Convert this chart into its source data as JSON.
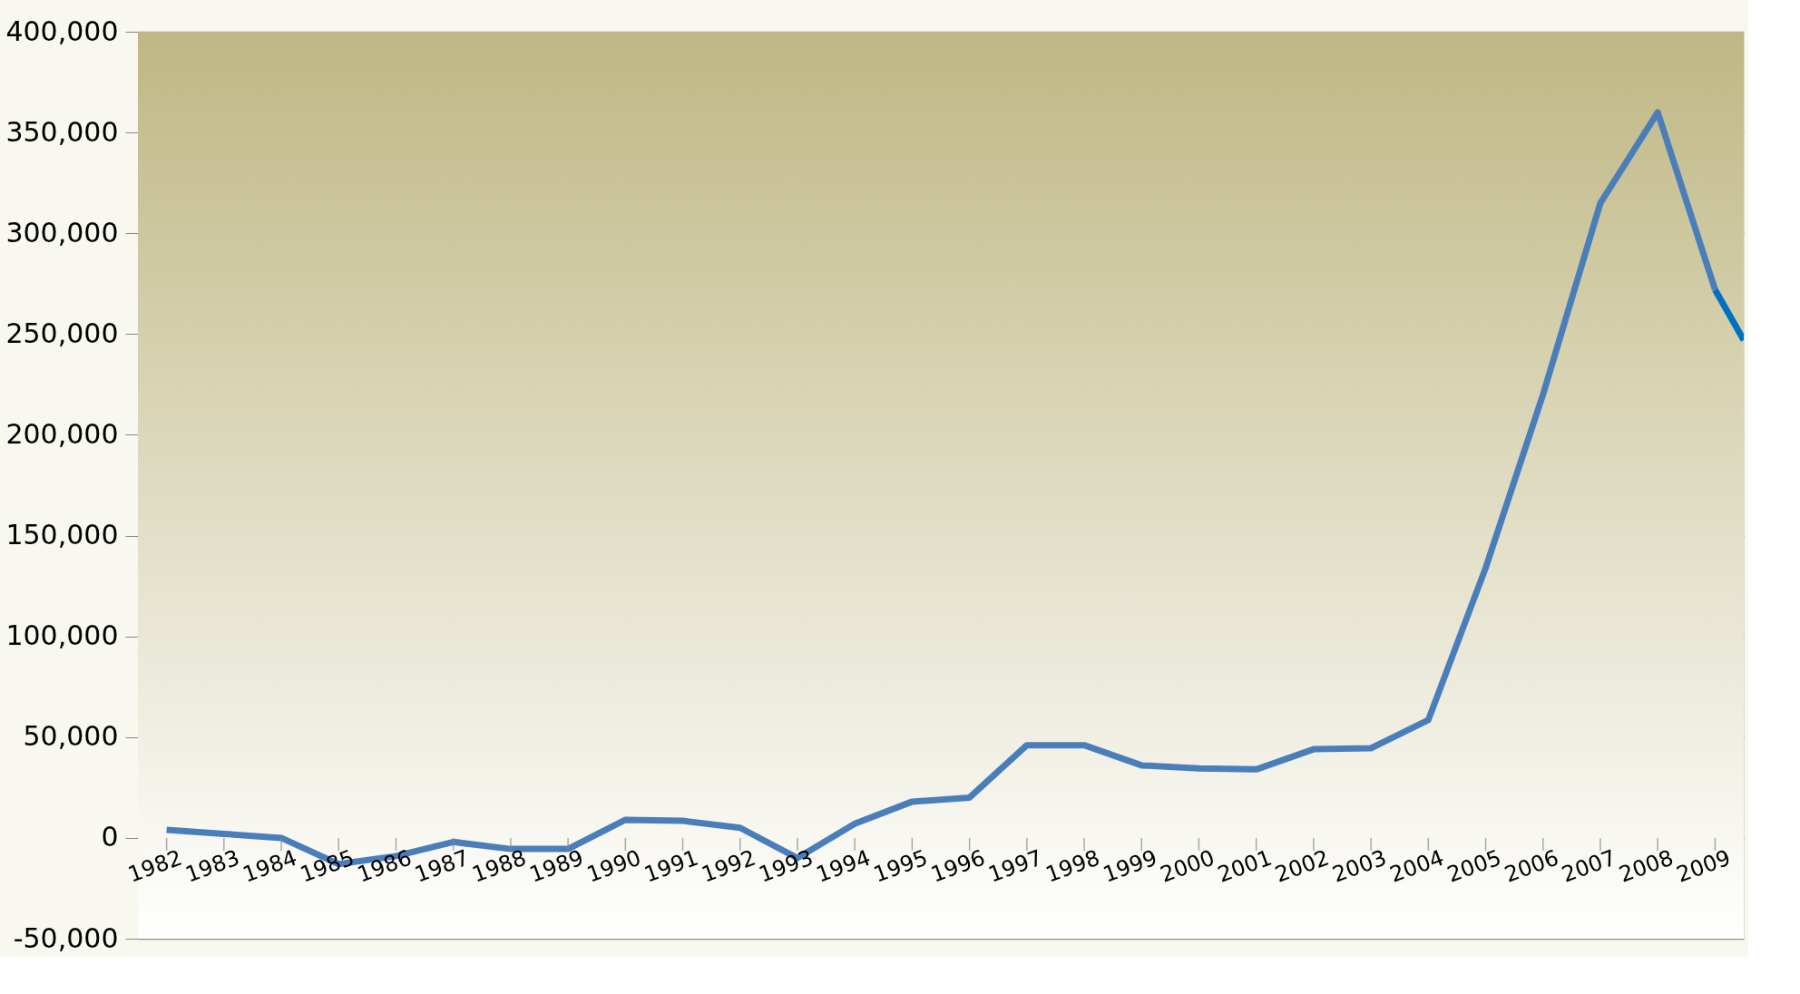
{
  "chart_data": {
    "type": "line",
    "x": [
      1982,
      1983,
      1984,
      1985,
      1986,
      1987,
      1988,
      1989,
      1990,
      1991,
      1992,
      1993,
      1994,
      1995,
      1996,
      1997,
      1998,
      1999,
      2000,
      2001,
      2002,
      2003,
      2004,
      2005,
      2006,
      2007,
      2008,
      2009
    ],
    "series": [
      {
        "color": "#4a7ebb",
        "values": [
          4000,
          2000,
          0,
          -13000,
          -9000,
          -2000,
          -5500,
          -5500,
          9000,
          8500,
          5000,
          -10000,
          7000,
          18000,
          20000,
          46000,
          46000,
          36000,
          34500,
          34000,
          44000,
          44500,
          58500,
          134000,
          220000,
          315000,
          360000,
          272000
        ]
      },
      {
        "color": "#0070c0",
        "x": [
          2009,
          2009.5
        ],
        "values": [
          272000,
          247000
        ]
      }
    ],
    "xlim": [
      1981.5,
      2009.5
    ],
    "xticks": [
      1982,
      1983,
      1984,
      1985,
      1986,
      1987,
      1988,
      1989,
      1990,
      1991,
      1992,
      1993,
      1994,
      1995,
      1996,
      1997,
      1998,
      1999,
      2000,
      2001,
      2002,
      2003,
      2004,
      2005,
      2006,
      2007,
      2008,
      2009
    ],
    "ylim": [
      -50000,
      400000
    ],
    "yticks": [
      {
        "value": -50000,
        "label": "-50,000"
      },
      0,
      {
        "value": 50000,
        "label": "50,000"
      },
      {
        "value": 100000,
        "label": "100,000"
      },
      {
        "value": 150000,
        "label": "150,000"
      },
      {
        "value": 200000,
        "label": "200,000"
      },
      {
        "value": 250000,
        "label": "250,000"
      },
      {
        "value": 300000,
        "label": "300,000"
      },
      {
        "value": 350000,
        "label": "350,000"
      },
      {
        "value": 400000,
        "label": "400,000"
      }
    ],
    "grid": "y",
    "legend": false,
    "marker": "none",
    "line_style": "solid"
  }
}
